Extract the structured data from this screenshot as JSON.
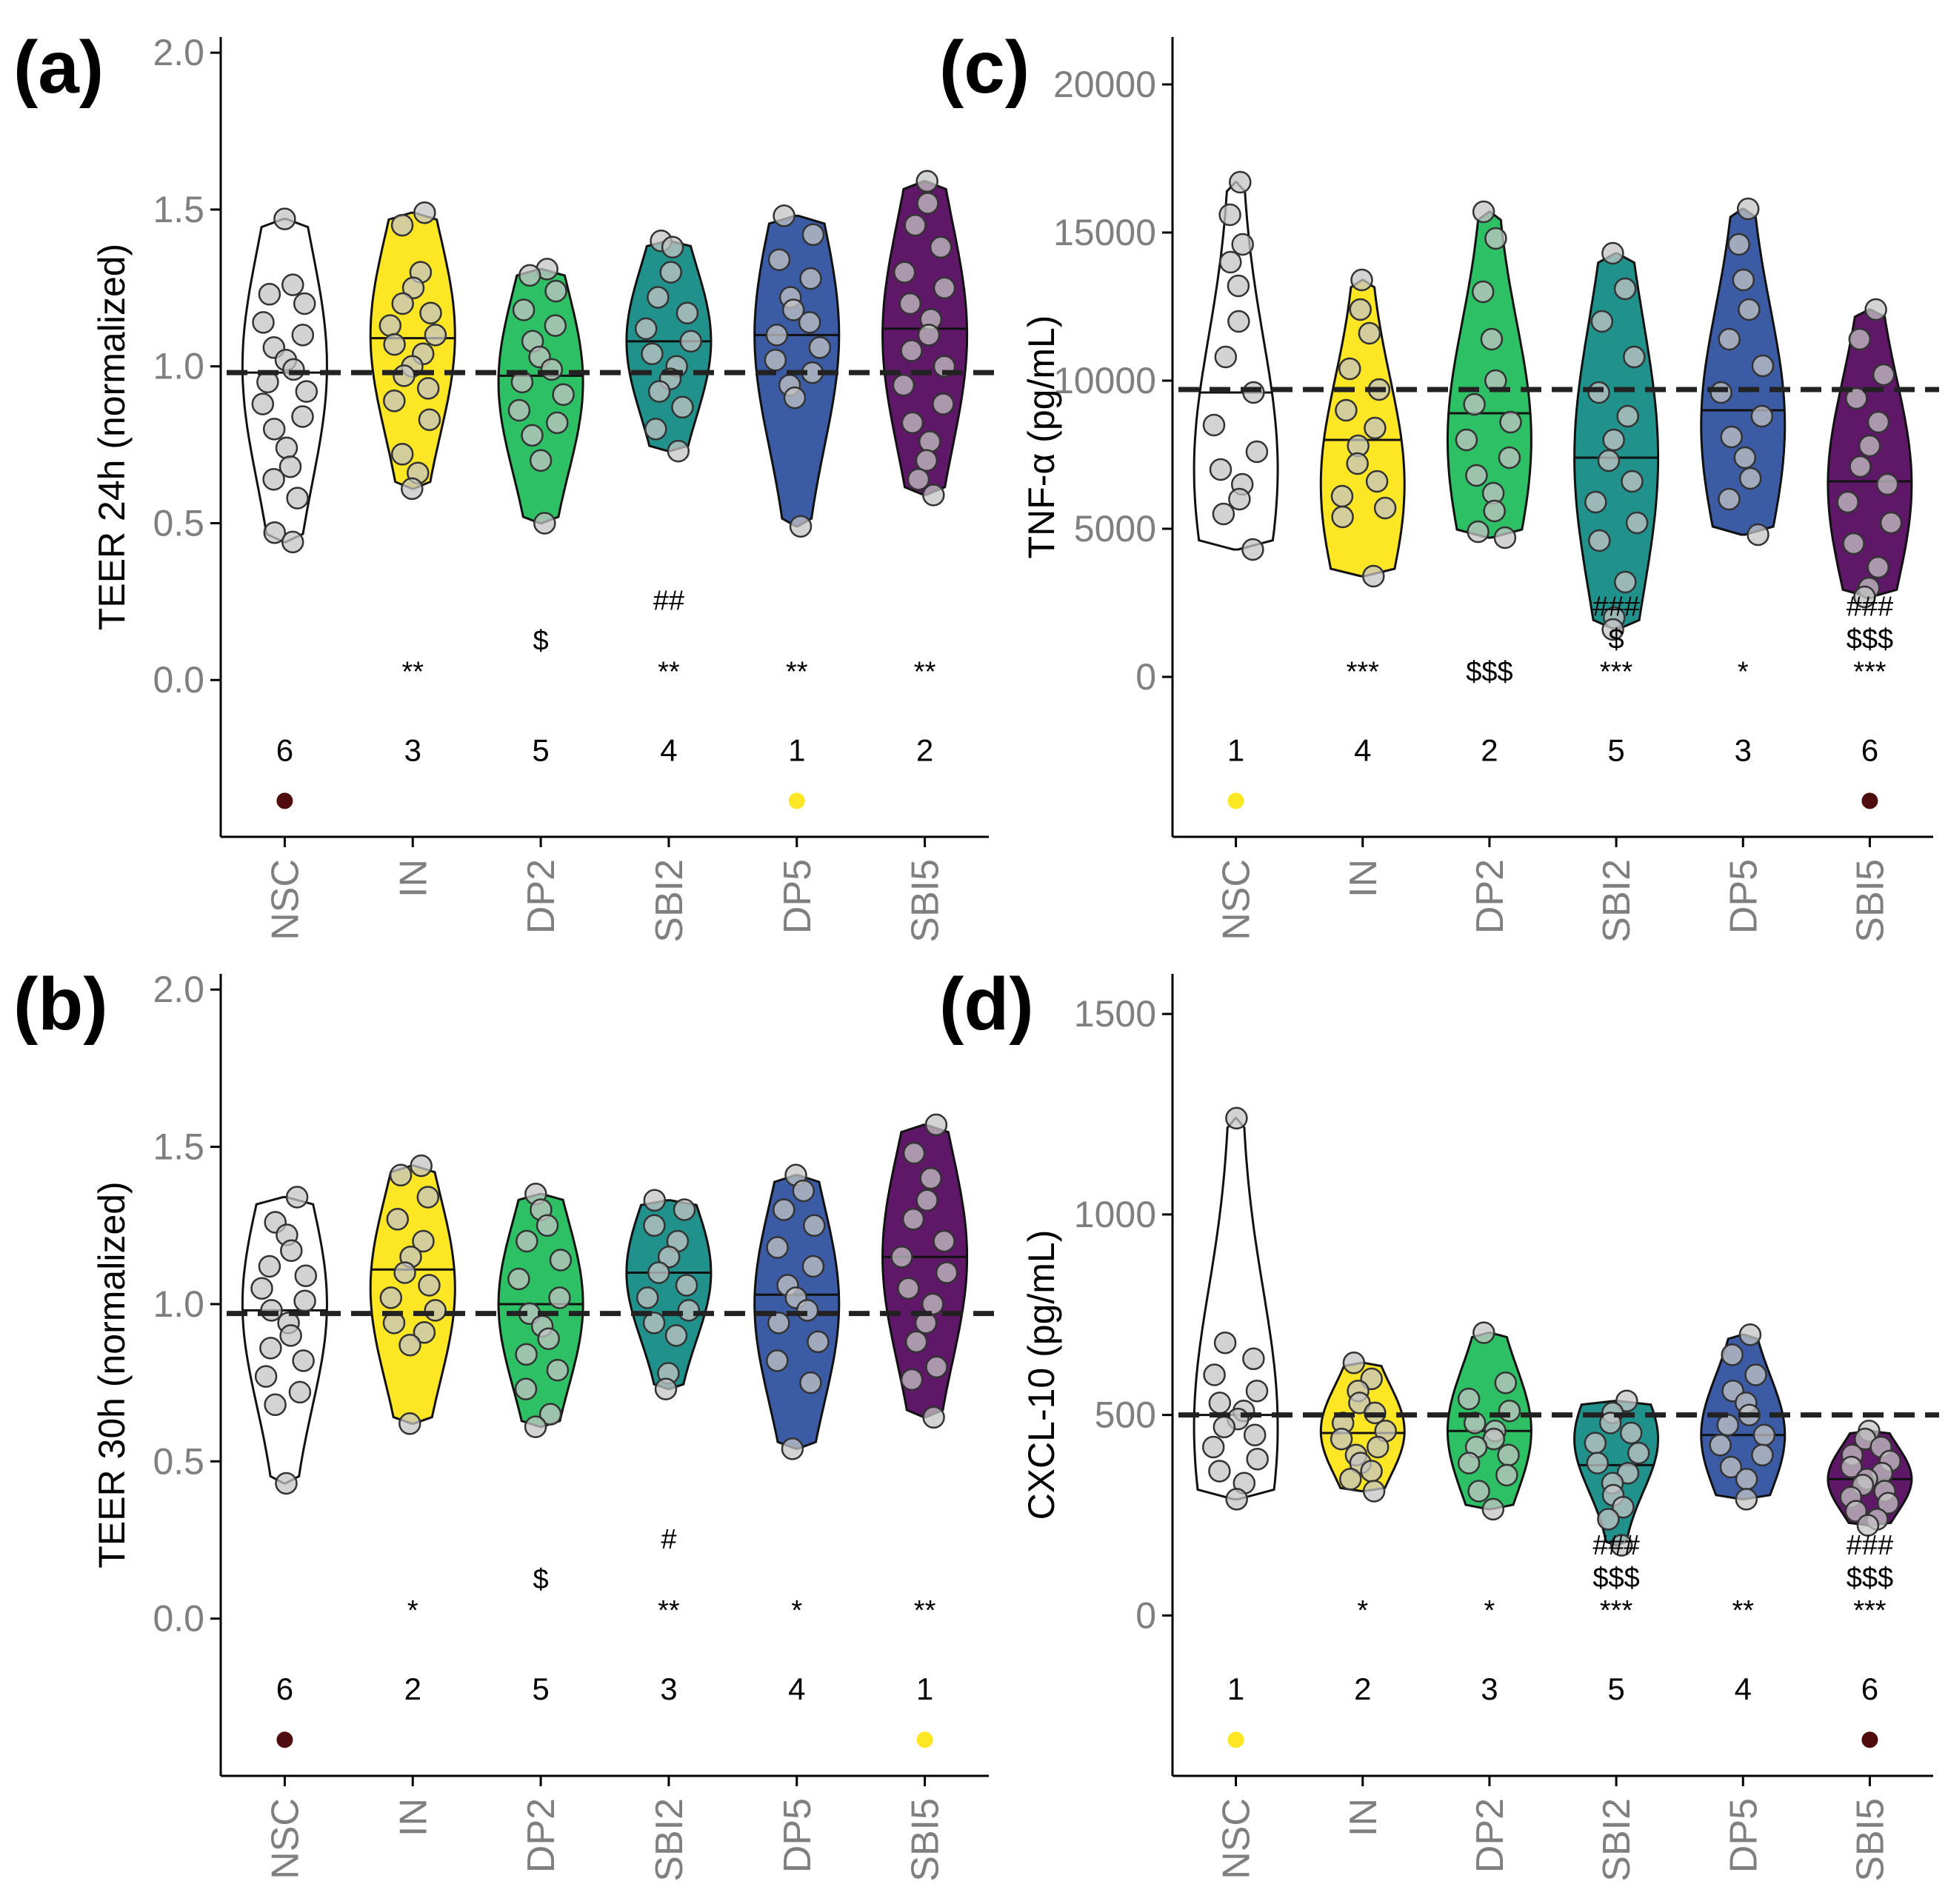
{
  "colors": {
    "NSC": "#ffffff",
    "IN": "#fde725",
    "DP2": "#2ec065",
    "SBI2": "#21918c",
    "DP5": "#3b5ba5",
    "SBI5": "#5f1768",
    "best_marker": "#fde725",
    "worst_marker": "#4f0c0c"
  },
  "chart_data": [
    {
      "id": "a",
      "panel_label": "(a)",
      "type": "violin",
      "categories": [
        "NSC",
        "IN",
        "DP2",
        "SBI2",
        "DP5",
        "SBI5"
      ],
      "ylabel": "TEER 24h (normalized)",
      "ylim": [
        -0.5,
        2.05
      ],
      "yticks": [
        "0.0",
        "0.5",
        "1.0",
        "1.5",
        "2.0"
      ],
      "ytick_values": [
        0,
        0.5,
        1.0,
        1.5,
        2.0
      ],
      "reference_line": 0.98,
      "groups": [
        {
          "name": "NSC",
          "min": 0.44,
          "max": 1.47,
          "median": 0.98,
          "peak": 1.0,
          "points": [
            1.47,
            1.26,
            1.23,
            1.2,
            1.14,
            1.1,
            1.06,
            1.02,
            0.99,
            0.95,
            0.92,
            0.88,
            0.84,
            0.8,
            0.74,
            0.68,
            0.64,
            0.58,
            0.47,
            0.44
          ]
        },
        {
          "name": "IN",
          "min": 0.61,
          "max": 1.49,
          "median": 1.09,
          "peak": 1.1,
          "points": [
            1.49,
            1.45,
            1.3,
            1.25,
            1.2,
            1.17,
            1.13,
            1.1,
            1.07,
            1.04,
            1.0,
            0.97,
            0.93,
            0.89,
            0.83,
            0.72,
            0.66,
            0.61
          ]
        },
        {
          "name": "DP2",
          "min": 0.5,
          "max": 1.31,
          "median": 0.97,
          "peak": 0.95,
          "points": [
            1.31,
            1.29,
            1.24,
            1.18,
            1.13,
            1.08,
            1.03,
            0.99,
            0.95,
            0.91,
            0.86,
            0.82,
            0.78,
            0.7,
            0.5
          ]
        },
        {
          "name": "SBI2",
          "min": 0.73,
          "max": 1.4,
          "median": 1.08,
          "peak": 1.08,
          "points": [
            1.4,
            1.38,
            1.3,
            1.22,
            1.17,
            1.12,
            1.08,
            1.04,
            1.0,
            0.96,
            0.92,
            0.87,
            0.8,
            0.73
          ]
        },
        {
          "name": "DP5",
          "min": 0.49,
          "max": 1.48,
          "median": 1.1,
          "peak": 1.1,
          "points": [
            1.48,
            1.42,
            1.34,
            1.28,
            1.22,
            1.18,
            1.14,
            1.1,
            1.06,
            1.02,
            0.98,
            0.94,
            0.9,
            0.49
          ]
        },
        {
          "name": "SBI5",
          "min": 0.59,
          "max": 1.59,
          "median": 1.12,
          "peak": 1.1,
          "points": [
            1.59,
            1.52,
            1.45,
            1.38,
            1.3,
            1.25,
            1.2,
            1.15,
            1.1,
            1.05,
            1.0,
            0.94,
            0.88,
            0.82,
            0.76,
            0.7,
            0.64,
            0.59
          ]
        }
      ],
      "annotations": [
        {
          "cat": "IN",
          "lines": [
            "**"
          ]
        },
        {
          "cat": "DP2",
          "lines": [
            "$"
          ]
        },
        {
          "cat": "SBI2",
          "lines": [
            "##",
            "**"
          ]
        },
        {
          "cat": "DP5",
          "lines": [
            "**"
          ]
        },
        {
          "cat": "SBI5",
          "lines": [
            "**"
          ]
        }
      ],
      "ranks": [
        "6",
        "3",
        "5",
        "4",
        "1",
        "2"
      ],
      "best": "DP5",
      "worst": "NSC"
    },
    {
      "id": "b",
      "panel_label": "(b)",
      "type": "violin",
      "categories": [
        "NSC",
        "IN",
        "DP2",
        "SBI2",
        "DP5",
        "SBI5"
      ],
      "ylabel": "TEER 30h (normalized)",
      "ylim": [
        -0.5,
        2.05
      ],
      "yticks": [
        "0.0",
        "0.5",
        "1.0",
        "1.5",
        "2.0"
      ],
      "ytick_values": [
        0,
        0.5,
        1.0,
        1.5,
        2.0
      ],
      "reference_line": 0.97,
      "groups": [
        {
          "name": "NSC",
          "min": 0.43,
          "max": 1.34,
          "median": 0.98,
          "peak": 1.0,
          "points": [
            1.34,
            1.26,
            1.22,
            1.17,
            1.12,
            1.09,
            1.05,
            1.01,
            0.98,
            0.94,
            0.9,
            0.86,
            0.82,
            0.77,
            0.72,
            0.68,
            0.43
          ]
        },
        {
          "name": "IN",
          "min": 0.62,
          "max": 1.44,
          "median": 1.11,
          "peak": 1.05,
          "points": [
            1.44,
            1.41,
            1.34,
            1.27,
            1.2,
            1.15,
            1.1,
            1.06,
            1.02,
            0.98,
            0.94,
            0.91,
            0.87,
            0.62
          ]
        },
        {
          "name": "DP2",
          "min": 0.61,
          "max": 1.35,
          "median": 1.0,
          "peak": 1.0,
          "points": [
            1.35,
            1.3,
            1.25,
            1.2,
            1.14,
            1.08,
            1.02,
            0.97,
            0.93,
            0.89,
            0.84,
            0.79,
            0.73,
            0.65,
            0.61
          ]
        },
        {
          "name": "SBI2",
          "min": 0.73,
          "max": 1.33,
          "median": 1.1,
          "peak": 1.1,
          "points": [
            1.33,
            1.3,
            1.25,
            1.2,
            1.15,
            1.1,
            1.06,
            1.02,
            0.98,
            0.94,
            0.9,
            0.78,
            0.73
          ]
        },
        {
          "name": "DP5",
          "min": 0.54,
          "max": 1.41,
          "median": 1.03,
          "peak": 1.0,
          "points": [
            1.41,
            1.36,
            1.3,
            1.25,
            1.18,
            1.12,
            1.06,
            1.02,
            0.98,
            0.94,
            0.88,
            0.82,
            0.75,
            0.54
          ]
        },
        {
          "name": "SBI5",
          "min": 0.64,
          "max": 1.57,
          "median": 1.15,
          "peak": 1.15,
          "points": [
            1.57,
            1.48,
            1.4,
            1.33,
            1.27,
            1.2,
            1.15,
            1.1,
            1.05,
            1.0,
            0.94,
            0.88,
            0.8,
            0.76,
            0.64
          ]
        }
      ],
      "annotations": [
        {
          "cat": "IN",
          "lines": [
            "*"
          ]
        },
        {
          "cat": "DP2",
          "lines": [
            "$"
          ]
        },
        {
          "cat": "SBI2",
          "lines": [
            "#",
            "**"
          ]
        },
        {
          "cat": "DP5",
          "lines": [
            "*"
          ]
        },
        {
          "cat": "SBI5",
          "lines": [
            "**"
          ]
        }
      ],
      "ranks": [
        "6",
        "2",
        "5",
        "3",
        "4",
        "1"
      ],
      "best": "SBI5",
      "worst": "NSC"
    },
    {
      "id": "c",
      "panel_label": "(c)",
      "type": "violin",
      "categories": [
        "NSC",
        "IN",
        "DP2",
        "SBI2",
        "DP5",
        "SBI5"
      ],
      "ylabel": "TNF-α (pg/mL)",
      "ylim": [
        -5400,
        21600
      ],
      "yticks": [
        "0",
        "5000",
        "10000",
        "15000",
        "20000"
      ],
      "ytick_values": [
        0,
        5000,
        10000,
        15000,
        20000
      ],
      "reference_line": 9700,
      "groups": [
        {
          "name": "NSC",
          "min": 4300,
          "max": 16700,
          "median": 9600,
          "peak": 7000,
          "points": [
            16700,
            15600,
            14600,
            14000,
            13200,
            12000,
            10800,
            9600,
            8500,
            7600,
            7000,
            6500,
            6000,
            5500,
            4300
          ]
        },
        {
          "name": "IN",
          "min": 3400,
          "max": 13400,
          "median": 8000,
          "peak": 6500,
          "points": [
            13400,
            12400,
            11600,
            10400,
            9700,
            9000,
            8400,
            7800,
            7200,
            6600,
            6100,
            5700,
            5400,
            3400
          ]
        },
        {
          "name": "DP2",
          "min": 4700,
          "max": 15700,
          "median": 8900,
          "peak": 8000,
          "points": [
            15700,
            14800,
            13000,
            11400,
            10000,
            9200,
            8600,
            8000,
            7400,
            6800,
            6200,
            5600,
            4900,
            4700
          ]
        },
        {
          "name": "SBI2",
          "min": 1600,
          "max": 14300,
          "median": 7400,
          "peak": 7400,
          "points": [
            14300,
            13100,
            12000,
            10800,
            9600,
            8800,
            8000,
            7300,
            6600,
            5900,
            5200,
            4600,
            3200,
            2000,
            1600
          ]
        },
        {
          "name": "DP5",
          "min": 4800,
          "max": 15800,
          "median": 9000,
          "peak": 8500,
          "points": [
            15800,
            14600,
            13400,
            12400,
            11400,
            10500,
            9600,
            8800,
            8100,
            7400,
            6700,
            6000,
            4800
          ]
        },
        {
          "name": "SBI5",
          "min": 2700,
          "max": 12400,
          "median": 6600,
          "peak": 6500,
          "points": [
            12400,
            11400,
            10200,
            9400,
            8600,
            7800,
            7100,
            6500,
            5900,
            5200,
            4500,
            3700,
            3000,
            2700
          ]
        }
      ],
      "annotations": [
        {
          "cat": "IN",
          "lines": [
            "***"
          ]
        },
        {
          "cat": "DP2",
          "lines": [
            "$$$"
          ]
        },
        {
          "cat": "SBI2",
          "lines": [
            "###",
            "$",
            "***"
          ]
        },
        {
          "cat": "DP5",
          "lines": [
            "*"
          ]
        },
        {
          "cat": "SBI5",
          "lines": [
            "###",
            "$$$",
            "***"
          ]
        }
      ],
      "ranks": [
        "1",
        "4",
        "2",
        "5",
        "3",
        "6"
      ],
      "best": "NSC",
      "worst": "SBI5"
    },
    {
      "id": "d",
      "panel_label": "(d)",
      "type": "violin",
      "categories": [
        "NSC",
        "IN",
        "DP2",
        "SBI2",
        "DP5",
        "SBI5"
      ],
      "ylabel": "CXCL-10 (pg/mL)",
      "ylim": [
        -400,
        1600
      ],
      "yticks": [
        "0",
        "500",
        "1000",
        "1500"
      ],
      "ytick_values": [
        0,
        500,
        1000,
        1500
      ],
      "reference_line": 500,
      "groups": [
        {
          "name": "NSC",
          "min": 290,
          "max": 1240,
          "median": 500,
          "peak": 470,
          "points": [
            1240,
            680,
            640,
            600,
            560,
            530,
            510,
            490,
            470,
            450,
            420,
            390,
            360,
            330,
            290
          ]
        },
        {
          "name": "IN",
          "min": 310,
          "max": 630,
          "median": 455,
          "peak": 460,
          "points": [
            630,
            590,
            560,
            530,
            505,
            480,
            460,
            440,
            420,
            400,
            380,
            360,
            340,
            310
          ]
        },
        {
          "name": "DP2",
          "min": 265,
          "max": 705,
          "median": 460,
          "peak": 460,
          "points": [
            705,
            580,
            540,
            510,
            480,
            460,
            440,
            420,
            400,
            380,
            350,
            310,
            265
          ]
        },
        {
          "name": "SBI2",
          "min": 175,
          "max": 535,
          "median": 375,
          "peak": 440,
          "points": [
            535,
            505,
            480,
            455,
            430,
            405,
            380,
            355,
            330,
            300,
            270,
            240,
            175
          ]
        },
        {
          "name": "DP5",
          "min": 290,
          "max": 700,
          "median": 450,
          "peak": 450,
          "points": [
            700,
            650,
            600,
            560,
            530,
            500,
            475,
            450,
            425,
            400,
            370,
            340,
            290
          ]
        },
        {
          "name": "SBI5",
          "min": 225,
          "max": 460,
          "median": 340,
          "peak": 340,
          "points": [
            460,
            440,
            420,
            400,
            385,
            370,
            355,
            340,
            325,
            310,
            295,
            280,
            260,
            240,
            225
          ]
        }
      ],
      "annotations": [
        {
          "cat": "IN",
          "lines": [
            "*"
          ]
        },
        {
          "cat": "DP2",
          "lines": [
            "*"
          ]
        },
        {
          "cat": "SBI2",
          "lines": [
            "###",
            "$$$",
            "***"
          ]
        },
        {
          "cat": "DP5",
          "lines": [
            "**"
          ]
        },
        {
          "cat": "SBI5",
          "lines": [
            "###",
            "$$$",
            "***"
          ]
        }
      ],
      "ranks": [
        "1",
        "2",
        "3",
        "5",
        "4",
        "6"
      ],
      "best": "NSC",
      "worst": "SBI5"
    }
  ]
}
